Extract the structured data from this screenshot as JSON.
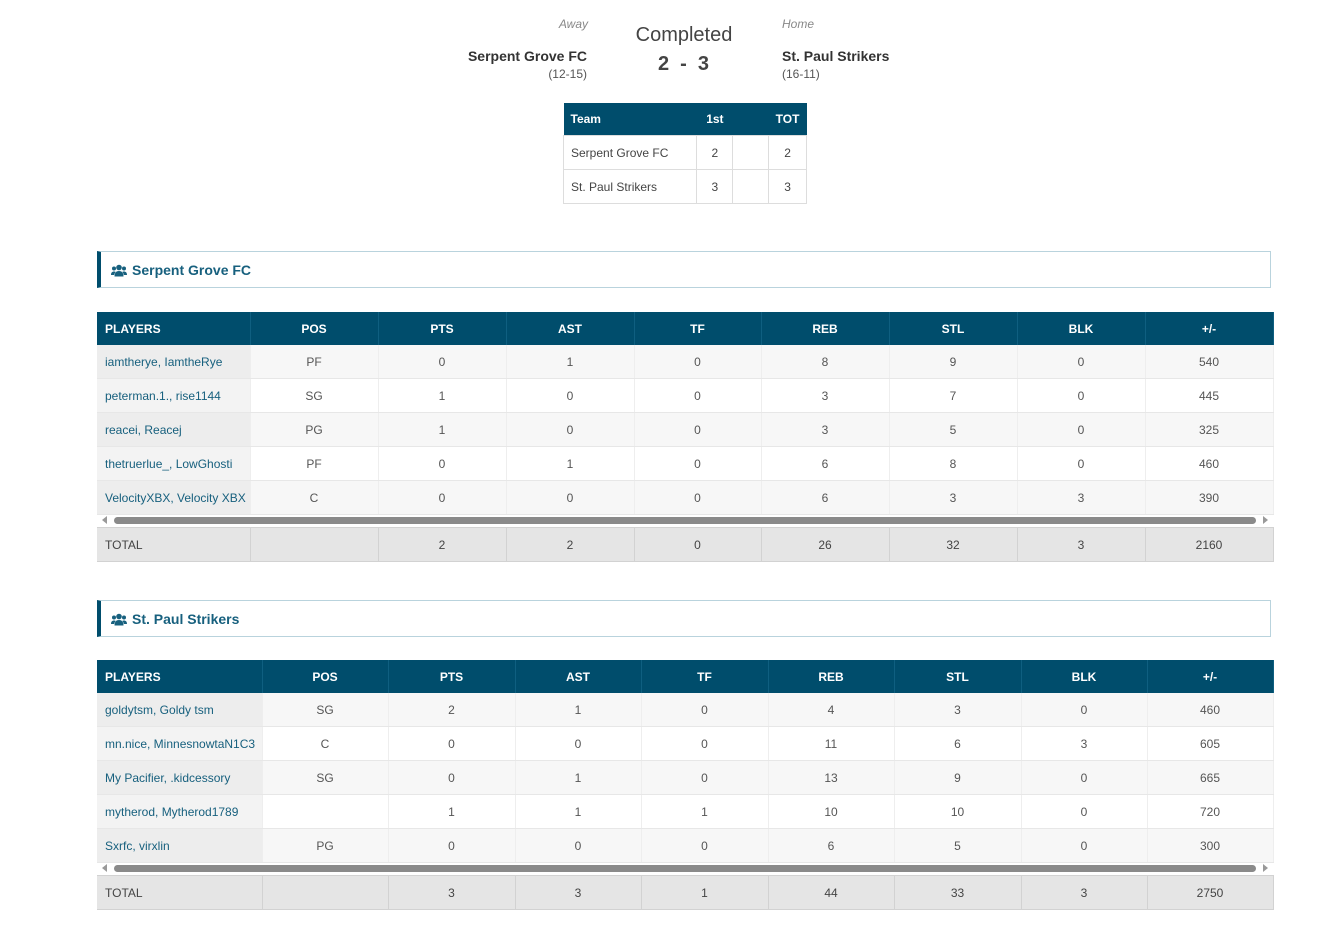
{
  "game": {
    "status": "Completed",
    "away": {
      "label": "Away",
      "name": "Serpent Grove FC",
      "record": "(12-15)",
      "score": "2"
    },
    "home": {
      "label": "Home",
      "name": "St. Paul Strikers",
      "record": "(16-11)",
      "score": "3"
    },
    "score_separator": "-"
  },
  "periods": {
    "headers": [
      "Team",
      "1st",
      "",
      "TOT"
    ],
    "rows": [
      {
        "team": "Serpent Grove FC",
        "p1": "2",
        "p2": "",
        "tot": "2"
      },
      {
        "team": "St. Paul Strikers",
        "p1": "3",
        "p2": "",
        "tot": "3"
      }
    ]
  },
  "columns": [
    "PLAYERS",
    "POS",
    "PTS",
    "AST",
    "TF",
    "REB",
    "STL",
    "BLK",
    "+/-"
  ],
  "teams": [
    {
      "name": "Serpent Grove FC",
      "players": [
        [
          "iamtherye, IamtheRye",
          "PF",
          "0",
          "1",
          "0",
          "8",
          "9",
          "0",
          "540"
        ],
        [
          "peterman.1., rise1144",
          "SG",
          "1",
          "0",
          "0",
          "3",
          "7",
          "0",
          "445"
        ],
        [
          "reacei, Reacej",
          "PG",
          "1",
          "0",
          "0",
          "3",
          "5",
          "0",
          "325"
        ],
        [
          "thetruerlue_, LowGhosti",
          "PF",
          "0",
          "1",
          "0",
          "6",
          "8",
          "0",
          "460"
        ],
        [
          "VelocityXBX, Velocity XBX",
          "C",
          "0",
          "0",
          "0",
          "6",
          "3",
          "3",
          "390"
        ]
      ],
      "totals": [
        "TOTAL",
        "",
        "2",
        "2",
        "0",
        "26",
        "32",
        "3",
        "2160"
      ]
    },
    {
      "name": "St. Paul Strikers",
      "players": [
        [
          "goldytsm, Goldy tsm",
          "SG",
          "2",
          "1",
          "0",
          "4",
          "3",
          "0",
          "460"
        ],
        [
          "mn.nice, MinnesnowtaN1C3",
          "C",
          "0",
          "0",
          "0",
          "11",
          "6",
          "3",
          "605"
        ],
        [
          "My Pacifier, .kidcessory",
          "SG",
          "0",
          "1",
          "0",
          "13",
          "9",
          "0",
          "665"
        ],
        [
          "mytherod, Mytherod1789",
          "",
          "1",
          "1",
          "1",
          "10",
          "10",
          "0",
          "720"
        ],
        [
          "Sxrfc, virxlin",
          "PG",
          "0",
          "0",
          "0",
          "6",
          "5",
          "0",
          "300"
        ]
      ],
      "totals": [
        "TOTAL",
        "",
        "3",
        "3",
        "1",
        "44",
        "33",
        "3",
        "2750"
      ]
    }
  ],
  "icons": {
    "team": "users-icon",
    "scroll_left": "arrow-left-icon",
    "scroll_right": "arrow-right-icon"
  },
  "colors": {
    "header_bg": "#004d6c",
    "link": "#17607e",
    "total_bg": "#e5e5e5"
  }
}
